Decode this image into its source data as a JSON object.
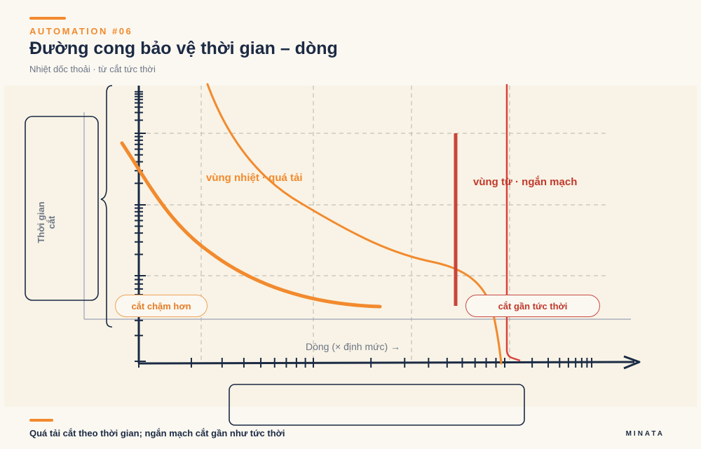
{
  "header": {
    "kicker": "AUTOMATION #06",
    "title": "Đường cong bảo vệ thời gian – dòng",
    "subtitle": "Nhiệt dốc thoải · từ cắt tức thời"
  },
  "diagram": {
    "y_axis_label": "Thời gian cắt",
    "x_axis_label": "Dòng (× định mức) →",
    "zone_thermal_label": "vùng nhiệt · quá tải",
    "zone_magnetic_label": "vùng từ · ngắn mạch",
    "slow_trip_label": "cắt chậm hơn",
    "fast_trip_label": "cắt gần tức thời",
    "colors": {
      "thermal": "#f28a2e",
      "magnetic": "#d9443b",
      "axis": "#1b2a44",
      "grid": "#b9b4aa"
    }
  },
  "footer": {
    "caption": "Quá tải cắt theo thời gian; ngắn mạch cắt gần như tức thời",
    "brand": "MINATA"
  }
}
